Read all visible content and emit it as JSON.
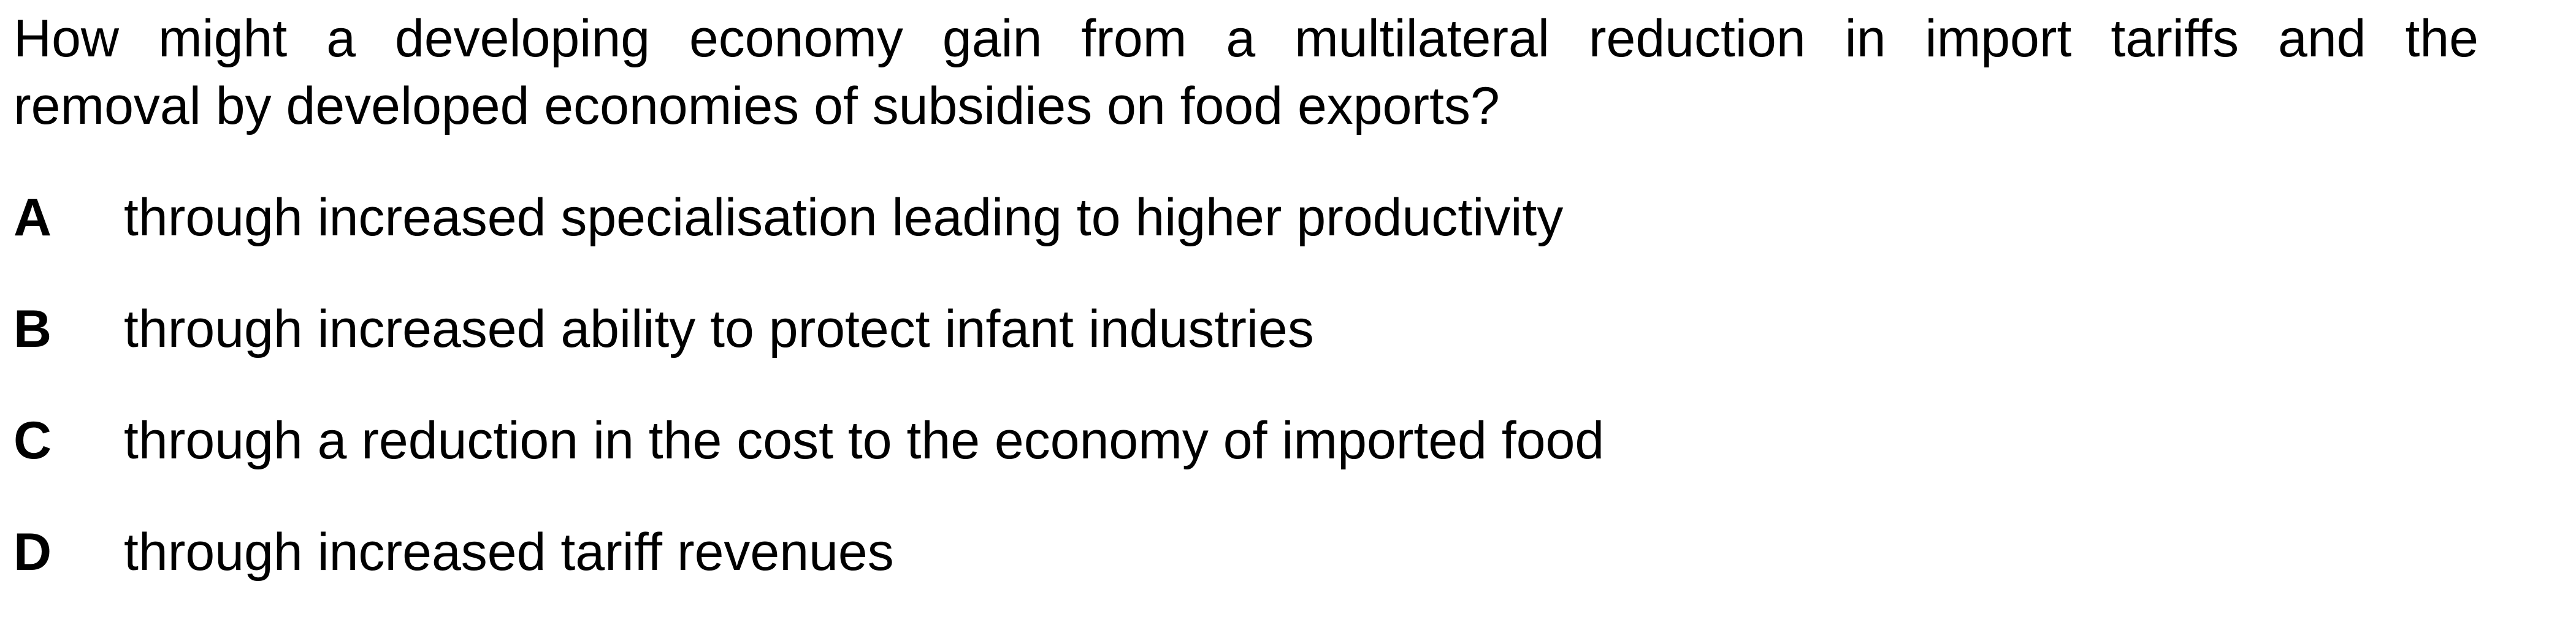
{
  "question": {
    "line1": "How might a developing economy gain from a multilateral reduction in import tariffs and the",
    "line2": "removal by developed economies of subsidies on food exports?"
  },
  "options": [
    {
      "letter": "A",
      "text": "through increased specialisation leading to higher productivity"
    },
    {
      "letter": "B",
      "text": "through increased ability to protect infant industries"
    },
    {
      "letter": "C",
      "text": "through a reduction in the cost to the economy of imported food"
    },
    {
      "letter": "D",
      "text": "through increased tariff revenues"
    }
  ]
}
